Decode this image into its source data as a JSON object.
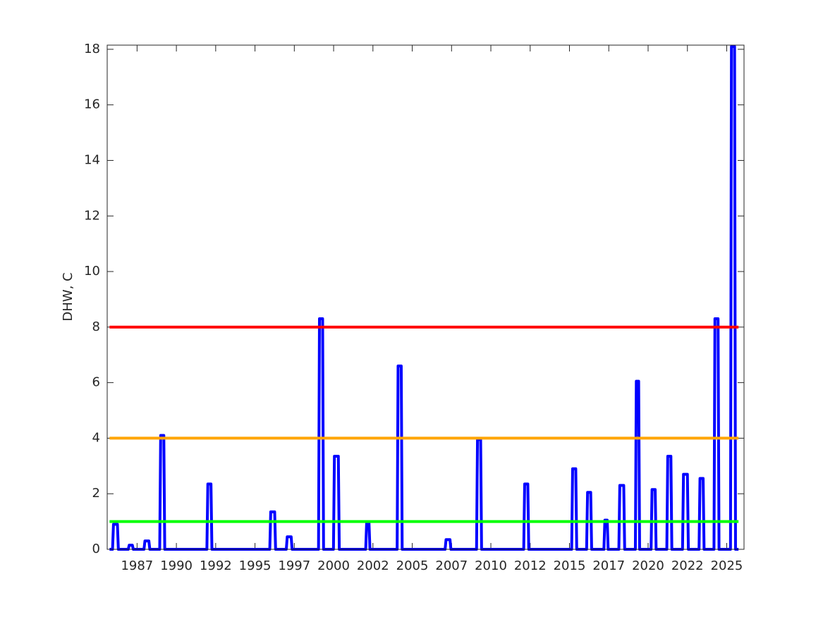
{
  "chart_data": {
    "type": "line",
    "ylabel": "DHW, C",
    "xlim": [
      1985.6,
      2026.1
    ],
    "ylim": [
      0,
      18.15
    ],
    "xticks": [
      {
        "value": 1987.5,
        "label": "1987"
      },
      {
        "value": 1990,
        "label": "1990"
      },
      {
        "value": 1992.5,
        "label": "1992"
      },
      {
        "value": 1995,
        "label": "1995"
      },
      {
        "value": 1997.5,
        "label": "1997"
      },
      {
        "value": 2000,
        "label": "2000"
      },
      {
        "value": 2002.5,
        "label": "2002"
      },
      {
        "value": 2005,
        "label": "2005"
      },
      {
        "value": 2007.5,
        "label": "2007"
      },
      {
        "value": 2010,
        "label": "2010"
      },
      {
        "value": 2012.5,
        "label": "2012"
      },
      {
        "value": 2015,
        "label": "2015"
      },
      {
        "value": 2017.5,
        "label": "2017"
      },
      {
        "value": 2020,
        "label": "2020"
      },
      {
        "value": 2022.5,
        "label": "2022"
      },
      {
        "value": 2025,
        "label": "2025"
      }
    ],
    "yticks": [
      0,
      2,
      4,
      6,
      8,
      10,
      12,
      14,
      16,
      18
    ],
    "grid": false,
    "series": [
      {
        "color": "#0000ff",
        "x": [
          1985.75,
          1985.94,
          1986,
          1986.25,
          1986.31,
          1986.94,
          1987,
          1987.2,
          1987.26,
          1987.94,
          1988,
          1988.25,
          1988.31,
          1988.94,
          1989,
          1989.2,
          1989.26,
          1991.94,
          1992,
          1992.2,
          1992.26,
          1995.94,
          1996,
          1996.25,
          1996.31,
          1996.99,
          1997.05,
          1997.3,
          1997.36,
          1999.04,
          1999.1,
          1999.3,
          1999.36,
          1999.99,
          2000.05,
          2000.3,
          2000.36,
          2002.04,
          2002.1,
          2002.25,
          2002.31,
          2004.04,
          2004.1,
          2004.3,
          2004.36,
          2007.09,
          2007.15,
          2007.4,
          2007.46,
          2009.09,
          2009.15,
          2009.35,
          2009.41,
          2012.09,
          2012.15,
          2012.35,
          2012.41,
          2015.14,
          2015.2,
          2015.4,
          2015.46,
          2016.09,
          2016.15,
          2016.35,
          2016.41,
          2017.19,
          2017.25,
          2017.4,
          2017.46,
          2018.14,
          2018.2,
          2018.45,
          2018.51,
          2019.19,
          2019.25,
          2019.4,
          2019.46,
          2020.19,
          2020.25,
          2020.45,
          2020.51,
          2021.19,
          2021.25,
          2021.45,
          2021.51,
          2022.19,
          2022.25,
          2022.5,
          2022.56,
          2023.24,
          2023.3,
          2023.5,
          2023.56,
          2024.19,
          2024.25,
          2024.45,
          2024.51,
          2025.24,
          2025.3,
          2025.5,
          2025.56,
          2025.75
        ],
        "values": [
          0,
          0,
          0.9,
          0.9,
          0,
          0,
          0.15,
          0.15,
          0,
          0,
          0.3,
          0.3,
          0,
          0,
          4.1,
          4.1,
          0,
          0,
          2.35,
          2.35,
          0,
          0,
          1.35,
          1.35,
          0,
          0,
          0.45,
          0.45,
          0,
          0,
          8.3,
          8.3,
          0,
          0,
          3.35,
          3.35,
          0,
          0,
          0.95,
          0.95,
          0,
          0,
          6.6,
          6.6,
          0,
          0,
          0.35,
          0.35,
          0,
          0,
          3.95,
          3.95,
          0,
          0,
          2.35,
          2.35,
          0,
          0,
          2.9,
          2.9,
          0,
          0,
          2.05,
          2.05,
          0,
          0,
          1.05,
          1.05,
          0,
          0,
          2.3,
          2.3,
          0,
          0,
          6.05,
          6.05,
          0,
          0,
          2.15,
          2.15,
          0,
          0,
          3.35,
          3.35,
          0,
          0,
          2.7,
          2.7,
          0,
          0,
          2.55,
          2.55,
          0,
          0,
          8.3,
          8.3,
          0,
          0,
          18.1,
          18.1,
          0,
          0
        ]
      },
      {
        "color": "#00ff00",
        "x": [
          1985.75,
          2025.75
        ],
        "values": [
          1,
          1
        ]
      },
      {
        "color": "#ffa500",
        "x": [
          1985.75,
          2025.75
        ],
        "values": [
          4,
          4
        ]
      },
      {
        "color": "#ff0000",
        "x": [
          1985.75,
          2025.75
        ],
        "values": [
          8,
          8
        ]
      }
    ]
  }
}
